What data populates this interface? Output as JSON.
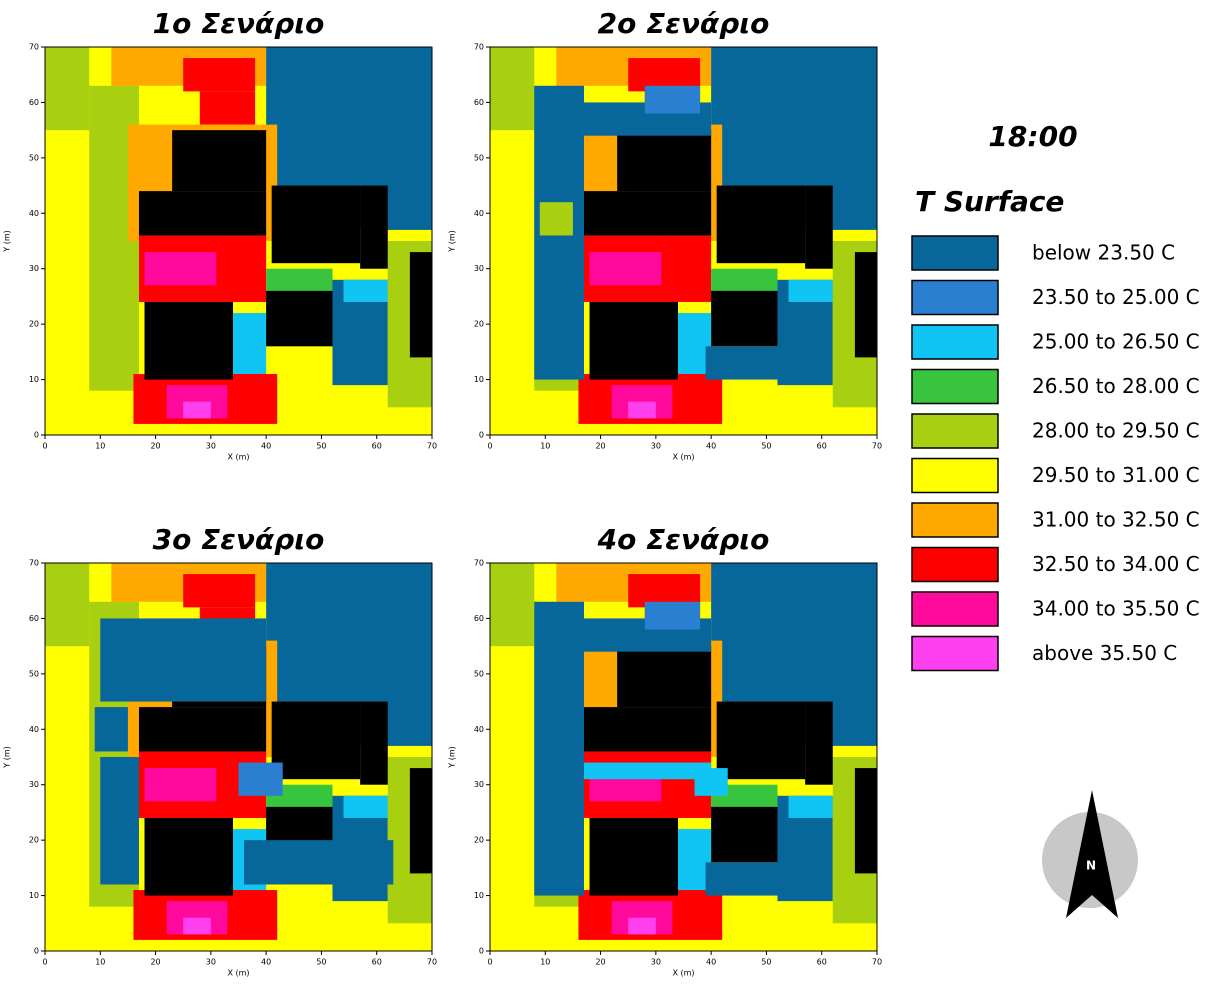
{
  "chart_data": [
    {
      "type": "map",
      "title": "1ο Σενάριο",
      "xlabel": "X (m)",
      "ylabel": "Y (m)",
      "xlim": [
        0,
        70
      ],
      "ylim": [
        0,
        70
      ],
      "xticks": [
        0,
        10,
        20,
        30,
        40,
        50,
        60,
        70
      ],
      "yticks": [
        0,
        10,
        20,
        30,
        40,
        50,
        60,
        70
      ]
    },
    {
      "type": "map",
      "title": "2ο Σενάριο",
      "xlabel": "X (m)",
      "ylabel": "Y (m)",
      "xlim": [
        0,
        70
      ],
      "ylim": [
        0,
        70
      ],
      "xticks": [
        0,
        10,
        20,
        30,
        40,
        50,
        60,
        70
      ],
      "yticks": [
        0,
        10,
        20,
        30,
        40,
        50,
        60,
        70
      ]
    },
    {
      "type": "map",
      "title": "3ο Σενάριο",
      "xlabel": "X (m)",
      "ylabel": "Y (m)",
      "xlim": [
        0,
        70
      ],
      "ylim": [
        0,
        70
      ],
      "xticks": [
        0,
        10,
        20,
        30,
        40,
        50,
        60,
        70
      ],
      "yticks": [
        0,
        10,
        20,
        30,
        40,
        50,
        60,
        70
      ]
    },
    {
      "type": "map",
      "title": "4ο Σενάριο",
      "xlabel": "X (m)",
      "ylabel": "Y (m)",
      "xlim": [
        0,
        70
      ],
      "ylim": [
        0,
        70
      ],
      "xticks": [
        0,
        10,
        20,
        30,
        40,
        50,
        60,
        70
      ],
      "yticks": [
        0,
        10,
        20,
        30,
        40,
        50,
        60,
        70
      ]
    }
  ],
  "legend": {
    "time": "18:00",
    "title": "T Surface",
    "entries": [
      {
        "label": "below 23.50 C",
        "color": "#08679a"
      },
      {
        "label": "23.50 to 25.00 C",
        "color": "#2a7fd0"
      },
      {
        "label": "25.00 to 26.50 C",
        "color": "#10c4f4"
      },
      {
        "label": "26.50 to 28.00 C",
        "color": "#38c43c"
      },
      {
        "label": "28.00 to 29.50 C",
        "color": "#a8d010"
      },
      {
        "label": "29.50 to 31.00 C",
        "color": "#ffff00"
      },
      {
        "label": "31.00 to 32.50 C",
        "color": "#ffa800"
      },
      {
        "label": "32.50 to 34.00 C",
        "color": "#ff0000"
      },
      {
        "label": "34.00 to 35.50 C",
        "color": "#ff0a9c"
      },
      {
        "label": "above 35.50 C",
        "color": "#ff40f0"
      }
    ]
  }
}
